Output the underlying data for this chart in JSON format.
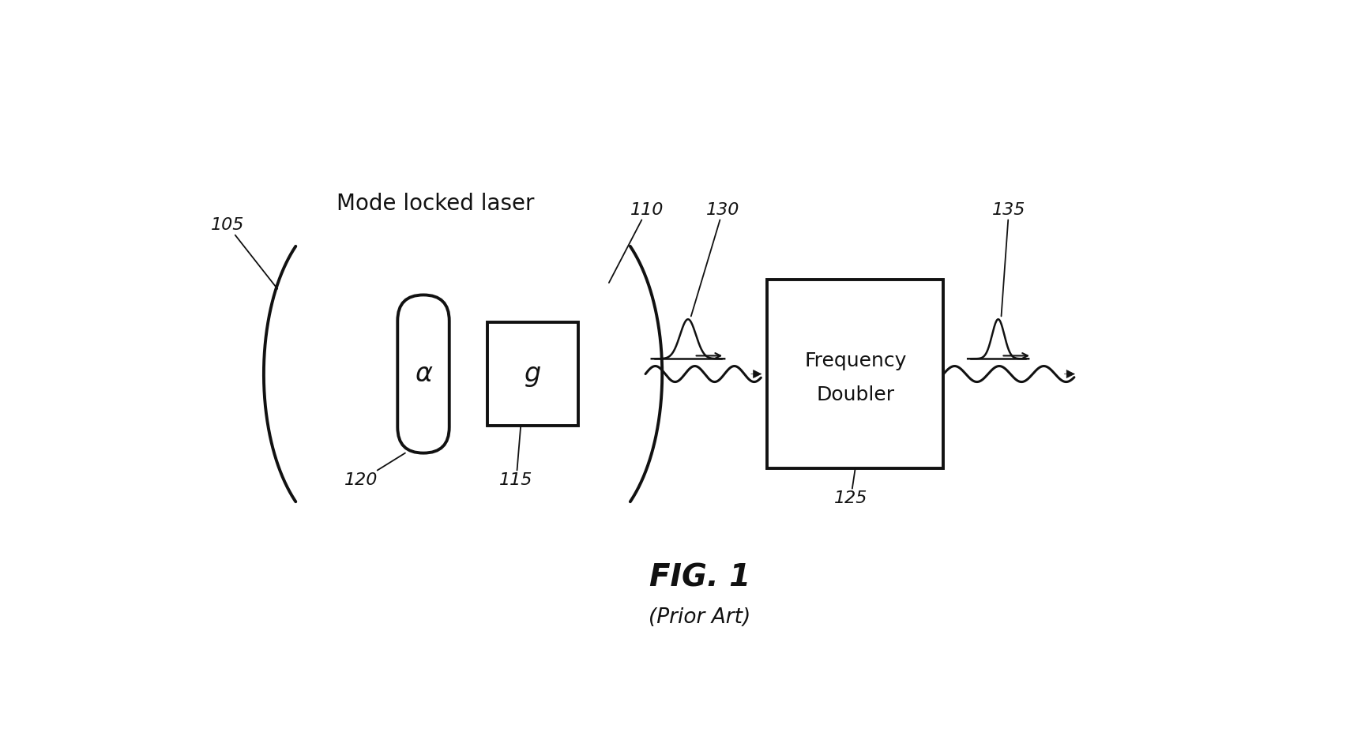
{
  "bg_color": "#ffffff",
  "line_color": "#111111",
  "title": "FIG. 1",
  "subtitle": "(Prior Art)",
  "label_mode_locked": "Mode locked laser",
  "label_alpha": "α",
  "label_g": "g",
  "label_freq_doubler_1": "Frequency",
  "label_freq_doubler_2": "Doubler",
  "ref_105": "105",
  "ref_110": "110",
  "ref_115": "115",
  "ref_120": "120",
  "ref_125": "125",
  "ref_130": "130",
  "ref_135": "135",
  "figsize": [
    17.28,
    9.56
  ],
  "dpi": 100
}
